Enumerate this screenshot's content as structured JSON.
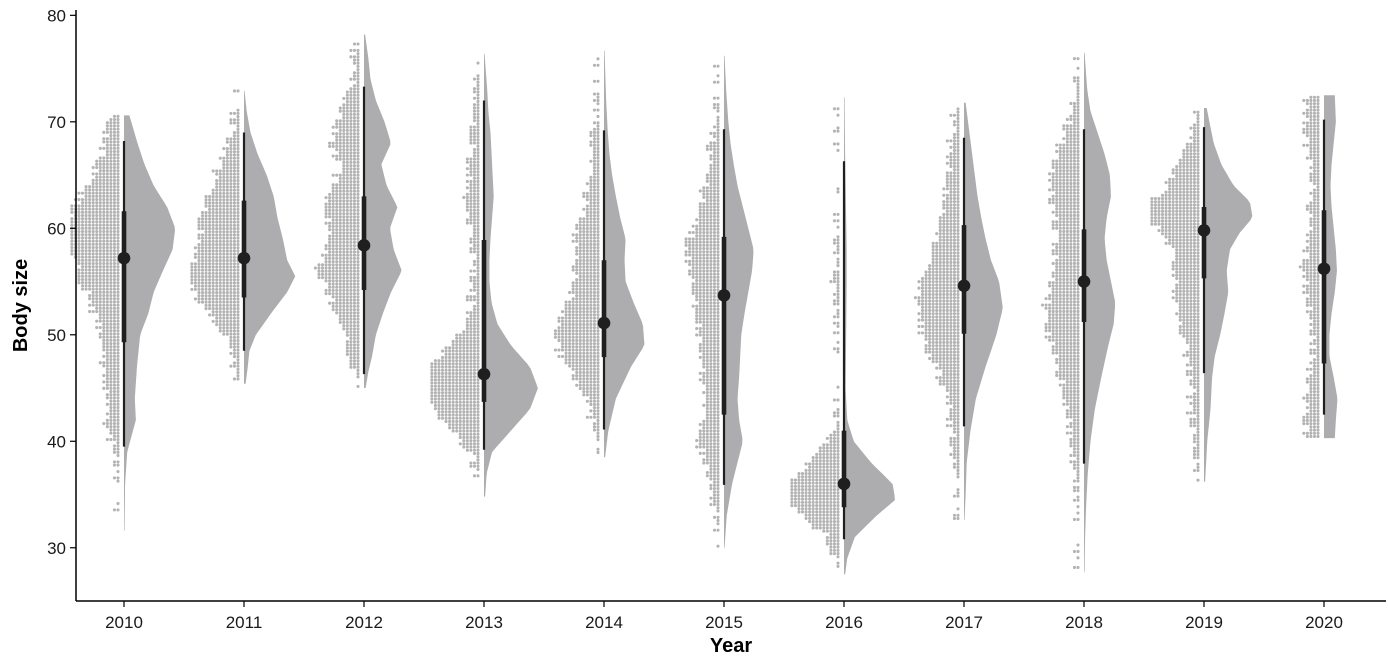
{
  "chart_data": {
    "type": "raincloud",
    "title": "",
    "xlabel": "Year",
    "ylabel": "Body size",
    "ylim": [
      25,
      80.5
    ],
    "yticks": [
      30,
      40,
      50,
      60,
      70,
      80
    ],
    "grid": false,
    "colors": {
      "density": "#adadaf",
      "dots": "#b3b3b3",
      "interval": "#1f1f1f",
      "axis": "#000000"
    },
    "groups": [
      {
        "label": "2010",
        "median": 57.2,
        "q1": 49.3,
        "q3": 61.6,
        "min": 39.5,
        "max": 68.2,
        "range": [
          31.6,
          70.6
        ],
        "density": [
          [
            31.6,
            0.01
          ],
          [
            36,
            0.02
          ],
          [
            39,
            0.06
          ],
          [
            42,
            0.22
          ],
          [
            44,
            0.2
          ],
          [
            47,
            0.24
          ],
          [
            50,
            0.3
          ],
          [
            52,
            0.45
          ],
          [
            54,
            0.55
          ],
          [
            56,
            0.72
          ],
          [
            58,
            0.9
          ],
          [
            60,
            0.95
          ],
          [
            62,
            0.8
          ],
          [
            64,
            0.55
          ],
          [
            66,
            0.38
          ],
          [
            68,
            0.25
          ],
          [
            70.6,
            0.1
          ]
        ]
      },
      {
        "label": "2011",
        "median": 57.2,
        "q1": 53.5,
        "q3": 62.6,
        "min": 48.5,
        "max": 69.0,
        "range": [
          45.4,
          72.9
        ],
        "density": [
          [
            45.4,
            0.03
          ],
          [
            47,
            0.07
          ],
          [
            48.5,
            0.1
          ],
          [
            50,
            0.22
          ],
          [
            52,
            0.5
          ],
          [
            54,
            0.8
          ],
          [
            55.5,
            0.95
          ],
          [
            57,
            0.8
          ],
          [
            59,
            0.72
          ],
          [
            61,
            0.62
          ],
          [
            63,
            0.55
          ],
          [
            65,
            0.42
          ],
          [
            67,
            0.25
          ],
          [
            69,
            0.12
          ],
          [
            71,
            0.05
          ],
          [
            72.9,
            0.01
          ]
        ]
      },
      {
        "label": "2012",
        "median": 58.4,
        "q1": 54.2,
        "q3": 63.0,
        "min": 46.3,
        "max": 73.3,
        "range": [
          45.0,
          78.2
        ],
        "density": [
          [
            45,
            0.03
          ],
          [
            46.5,
            0.08
          ],
          [
            48,
            0.15
          ],
          [
            50,
            0.22
          ],
          [
            52,
            0.35
          ],
          [
            54,
            0.5
          ],
          [
            56,
            0.7
          ],
          [
            58,
            0.55
          ],
          [
            60,
            0.48
          ],
          [
            62,
            0.62
          ],
          [
            64,
            0.42
          ],
          [
            66,
            0.32
          ],
          [
            68,
            0.5
          ],
          [
            70,
            0.38
          ],
          [
            72,
            0.22
          ],
          [
            74,
            0.12
          ],
          [
            76,
            0.08
          ],
          [
            78.2,
            0.02
          ]
        ]
      },
      {
        "label": "2013",
        "median": 46.3,
        "q1": 43.7,
        "q3": 58.9,
        "min": 39.2,
        "max": 72.0,
        "range": [
          34.8,
          76.4
        ],
        "density": [
          [
            34.8,
            0.02
          ],
          [
            37,
            0.05
          ],
          [
            39,
            0.15
          ],
          [
            41,
            0.5
          ],
          [
            43,
            0.85
          ],
          [
            45,
            1.0
          ],
          [
            47,
            0.85
          ],
          [
            49,
            0.5
          ],
          [
            51,
            0.25
          ],
          [
            53,
            0.14
          ],
          [
            55,
            0.1
          ],
          [
            57,
            0.1
          ],
          [
            59,
            0.12
          ],
          [
            61,
            0.15
          ],
          [
            63,
            0.18
          ],
          [
            65,
            0.16
          ],
          [
            67,
            0.14
          ],
          [
            69,
            0.12
          ],
          [
            71,
            0.08
          ],
          [
            73,
            0.06
          ],
          [
            76.4,
            0.01
          ]
        ]
      },
      {
        "label": "2014",
        "median": 51.1,
        "q1": 47.9,
        "q3": 57.0,
        "min": 41.1,
        "max": 69.2,
        "range": [
          38.5,
          76.7
        ],
        "density": [
          [
            38.5,
            0.02
          ],
          [
            41,
            0.08
          ],
          [
            44,
            0.22
          ],
          [
            47,
            0.5
          ],
          [
            49,
            0.75
          ],
          [
            51,
            0.72
          ],
          [
            53,
            0.55
          ],
          [
            55,
            0.4
          ],
          [
            57,
            0.38
          ],
          [
            59,
            0.4
          ],
          [
            61,
            0.3
          ],
          [
            63,
            0.22
          ],
          [
            65,
            0.15
          ],
          [
            67,
            0.1
          ],
          [
            69,
            0.07
          ],
          [
            72,
            0.04
          ],
          [
            76.7,
            0.01
          ]
        ]
      },
      {
        "label": "2015",
        "median": 53.7,
        "q1": 42.5,
        "q3": 59.2,
        "min": 35.9,
        "max": 69.3,
        "range": [
          30.0,
          76.2
        ],
        "density": [
          [
            30,
            0.01
          ],
          [
            33,
            0.05
          ],
          [
            36,
            0.15
          ],
          [
            38,
            0.25
          ],
          [
            40,
            0.35
          ],
          [
            42,
            0.28
          ],
          [
            44,
            0.25
          ],
          [
            46,
            0.28
          ],
          [
            48,
            0.3
          ],
          [
            50,
            0.32
          ],
          [
            52,
            0.38
          ],
          [
            54,
            0.45
          ],
          [
            56,
            0.52
          ],
          [
            58,
            0.55
          ],
          [
            60,
            0.45
          ],
          [
            62,
            0.35
          ],
          [
            64,
            0.25
          ],
          [
            66,
            0.18
          ],
          [
            68,
            0.12
          ],
          [
            70,
            0.08
          ],
          [
            73,
            0.04
          ],
          [
            76.2,
            0.01
          ]
        ]
      },
      {
        "label": "2016",
        "median": 36.0,
        "q1": 33.8,
        "q3": 41.0,
        "min": 30.8,
        "max": 66.3,
        "range": [
          27.5,
          72.3
        ],
        "density": [
          [
            27.5,
            0.02
          ],
          [
            29,
            0.06
          ],
          [
            31,
            0.2
          ],
          [
            33,
            0.6
          ],
          [
            34.5,
            0.95
          ],
          [
            36,
            0.9
          ],
          [
            38,
            0.5
          ],
          [
            40,
            0.18
          ],
          [
            42,
            0.06
          ],
          [
            45,
            0.03
          ],
          [
            50,
            0.04
          ],
          [
            55,
            0.05
          ],
          [
            58,
            0.05
          ],
          [
            61,
            0.04
          ],
          [
            64,
            0.03
          ],
          [
            67,
            0.02
          ],
          [
            72.3,
            0.01
          ]
        ]
      },
      {
        "label": "2017",
        "median": 54.6,
        "q1": 50.1,
        "q3": 60.3,
        "min": 41.4,
        "max": 68.5,
        "range": [
          32.6,
          71.8
        ],
        "density": [
          [
            32.6,
            0.01
          ],
          [
            35,
            0.03
          ],
          [
            38,
            0.05
          ],
          [
            41,
            0.12
          ],
          [
            44,
            0.22
          ],
          [
            47,
            0.4
          ],
          [
            50,
            0.6
          ],
          [
            52.5,
            0.72
          ],
          [
            55,
            0.65
          ],
          [
            57,
            0.5
          ],
          [
            59,
            0.4
          ],
          [
            61,
            0.32
          ],
          [
            63,
            0.25
          ],
          [
            65,
            0.2
          ],
          [
            67,
            0.15
          ],
          [
            69,
            0.1
          ],
          [
            71.8,
            0.03
          ]
        ]
      },
      {
        "label": "2018",
        "median": 55.0,
        "q1": 51.2,
        "q3": 59.9,
        "min": 37.9,
        "max": 69.3,
        "range": [
          27.7,
          76.5
        ],
        "density": [
          [
            27.7,
            0.01
          ],
          [
            31,
            0.02
          ],
          [
            34,
            0.04
          ],
          [
            37,
            0.07
          ],
          [
            40,
            0.12
          ],
          [
            43,
            0.2
          ],
          [
            46,
            0.32
          ],
          [
            49,
            0.45
          ],
          [
            51,
            0.55
          ],
          [
            53,
            0.58
          ],
          [
            55,
            0.5
          ],
          [
            57,
            0.42
          ],
          [
            59,
            0.38
          ],
          [
            61,
            0.42
          ],
          [
            63,
            0.5
          ],
          [
            65,
            0.48
          ],
          [
            67,
            0.38
          ],
          [
            69,
            0.25
          ],
          [
            71,
            0.12
          ],
          [
            73,
            0.06
          ],
          [
            76.5,
            0.01
          ]
        ]
      },
      {
        "label": "2019",
        "median": 59.8,
        "q1": 55.3,
        "q3": 62.0,
        "min": 46.4,
        "max": 69.5,
        "range": [
          36.2,
          71.3
        ],
        "density": [
          [
            36.2,
            0.02
          ],
          [
            38,
            0.04
          ],
          [
            40,
            0.06
          ],
          [
            43,
            0.12
          ],
          [
            46,
            0.15
          ],
          [
            48,
            0.2
          ],
          [
            50,
            0.3
          ],
          [
            52,
            0.38
          ],
          [
            54,
            0.45
          ],
          [
            56,
            0.42
          ],
          [
            58,
            0.48
          ],
          [
            59.5,
            0.65
          ],
          [
            61,
            0.9
          ],
          [
            62.5,
            0.85
          ],
          [
            64,
            0.55
          ],
          [
            66,
            0.32
          ],
          [
            68,
            0.18
          ],
          [
            70,
            0.1
          ],
          [
            71.3,
            0.05
          ]
        ]
      },
      {
        "label": "2020",
        "median": 56.2,
        "q1": 47.3,
        "q3": 61.7,
        "min": 42.5,
        "max": 70.2,
        "range": [
          40.3,
          72.5
        ],
        "density": [
          [
            40.3,
            0.2
          ],
          [
            42,
            0.22
          ],
          [
            44,
            0.25
          ],
          [
            46,
            0.18
          ],
          [
            48,
            0.1
          ],
          [
            50,
            0.1
          ],
          [
            52,
            0.14
          ],
          [
            54,
            0.2
          ],
          [
            56,
            0.24
          ],
          [
            58,
            0.22
          ],
          [
            60,
            0.18
          ],
          [
            62,
            0.14
          ],
          [
            64,
            0.12
          ],
          [
            66,
            0.14
          ],
          [
            68,
            0.18
          ],
          [
            70,
            0.22
          ],
          [
            72.5,
            0.2
          ]
        ]
      }
    ]
  }
}
